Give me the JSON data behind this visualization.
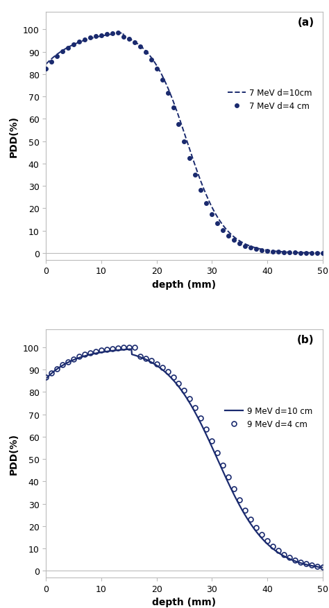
{
  "color": "#1a2a6e",
  "background": "#ffffff",
  "panel_a": {
    "label": "(a)",
    "legend1": "7 MeV d=10cm",
    "legend2": "7 MeV d=4 cm",
    "xlabel": "depth (mm)",
    "ylabel": "PDD(%)",
    "xlim": [
      0,
      50
    ],
    "ylim": [
      -3,
      108
    ],
    "xticks": [
      0,
      10,
      20,
      30,
      40,
      50
    ],
    "yticks": [
      0,
      10,
      20,
      30,
      40,
      50,
      60,
      70,
      80,
      90,
      100
    ]
  },
  "panel_b": {
    "label": "(b)",
    "legend1": "9 MeV d=10 cm",
    "legend2": "9 MeV d=4 cm",
    "xlabel": "depth (mm)",
    "ylabel": "PDD(%)",
    "xlim": [
      0,
      50
    ],
    "ylim": [
      -3,
      108
    ],
    "xticks": [
      0,
      10,
      20,
      30,
      40,
      50
    ],
    "yticks": [
      0,
      10,
      20,
      30,
      40,
      50,
      60,
      70,
      80,
      90,
      100
    ]
  }
}
